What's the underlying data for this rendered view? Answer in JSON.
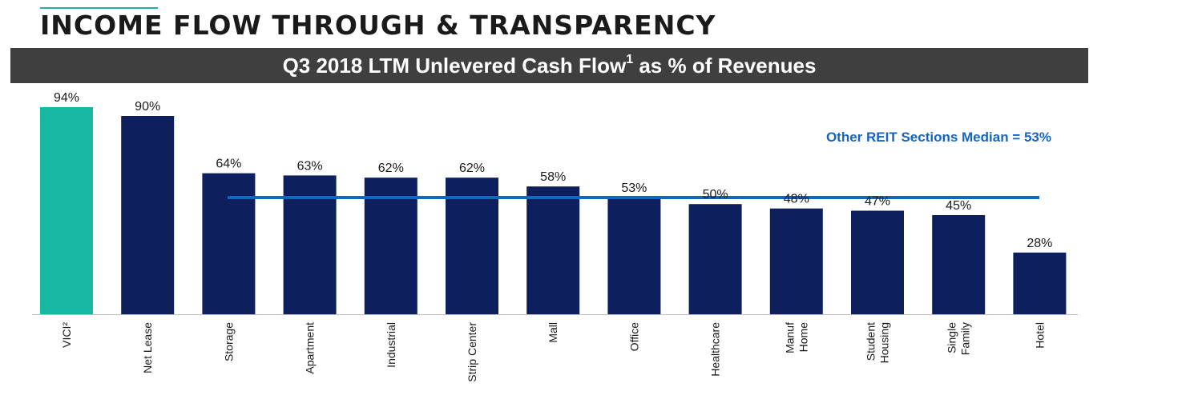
{
  "page": {
    "title": "INCOME FLOW THROUGH & TRANSPARENCY"
  },
  "colors": {
    "accent": "#1bb3a0",
    "vici_bar": "#16b8a2",
    "bar": "#0d1f5c",
    "median_line": "#1565c0",
    "subtitle_bg": "#3f3f3f"
  },
  "chart_data": {
    "type": "bar",
    "title_main": "Q3 2018 LTM Unlevered Cash Flow",
    "title_superscript": "1",
    "title_suffix": " as % of Revenues",
    "categories": [
      [
        "VICI²"
      ],
      [
        "Net Lease"
      ],
      [
        "Storage"
      ],
      [
        "Apartment"
      ],
      [
        "Industrial"
      ],
      [
        "Strip Center"
      ],
      [
        "Mall"
      ],
      [
        "Office"
      ],
      [
        "Healthcare"
      ],
      [
        "Manuf",
        "Home"
      ],
      [
        "Student",
        "Housing"
      ],
      [
        "Single",
        "Family"
      ],
      [
        "Hotel"
      ]
    ],
    "values": [
      94,
      90,
      64,
      63,
      62,
      62,
      58,
      53,
      50,
      48,
      47,
      45,
      28
    ],
    "value_labels": [
      "94%",
      "90%",
      "64%",
      "63%",
      "62%",
      "62%",
      "58%",
      "53%",
      "50%",
      "48%",
      "47%",
      "45%",
      "28%"
    ],
    "highlight_index": 0,
    "median": {
      "value": 53,
      "label": "Other REIT Sections Median = 53%"
    },
    "ylim": [
      0,
      100
    ],
    "xlabel": "",
    "ylabel": "",
    "grid": false,
    "legend": "none"
  }
}
